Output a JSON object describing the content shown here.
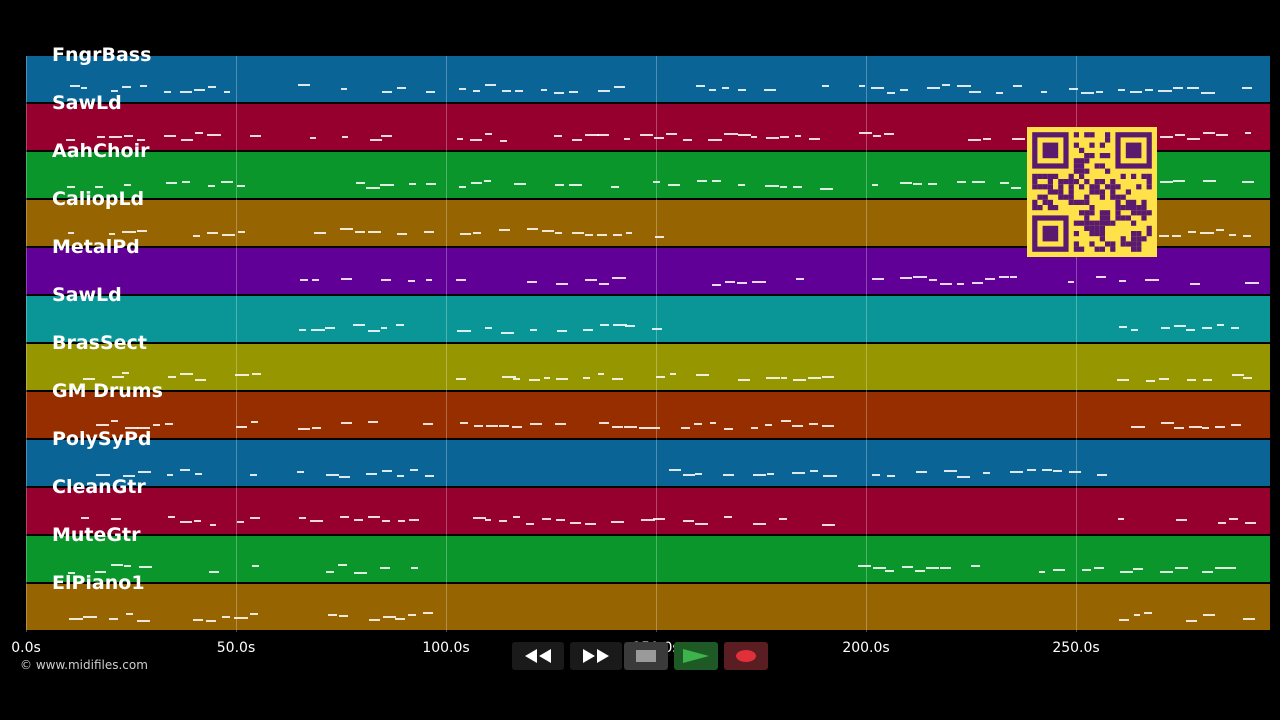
{
  "tracks": [
    {
      "name": "FngrBass",
      "color": "#0a6496"
    },
    {
      "name": "SawLd",
      "color": "#96002e"
    },
    {
      "name": "AahChoir",
      "color": "#0a962a"
    },
    {
      "name": "CaliopLd",
      "color": "#966400"
    },
    {
      "name": "MetalPd",
      "color": "#600096"
    },
    {
      "name": "SawLd",
      "color": "#0a9696"
    },
    {
      "name": "BrasSect",
      "color": "#969600"
    },
    {
      "name": "GM Drums",
      "color": "#962e00"
    },
    {
      "name": "PolySyPd",
      "color": "#0a6496"
    },
    {
      "name": "CleanGtr",
      "color": "#96002e"
    },
    {
      "name": "MuteGtr",
      "color": "#0a962a"
    },
    {
      "name": "ElPiano1",
      "color": "#966400"
    }
  ],
  "timeline": {
    "duration_seconds": 296,
    "ticks": [
      {
        "value": 0,
        "label": "0.0s"
      },
      {
        "value": 50,
        "label": "50.0s"
      },
      {
        "value": 100,
        "label": "100.0s"
      },
      {
        "value": 150,
        "label": "150.0s"
      },
      {
        "value": 200,
        "label": "200.0s"
      },
      {
        "value": 250,
        "label": "250.0s"
      }
    ]
  },
  "copyright": "© www.midifiles.com",
  "transport": {
    "rewind_icon": "rewind-icon",
    "fast_forward_icon": "fast-forward-icon",
    "stop_icon": "stop-icon",
    "play_icon": "play-icon",
    "record_icon": "record-icon",
    "play_color": "#3cb44b",
    "record_color": "#e0303a"
  },
  "qr_icon": "qr-code-icon",
  "qr_colors": {
    "background": "#ffe14a",
    "foreground": "#5a1a6e"
  }
}
